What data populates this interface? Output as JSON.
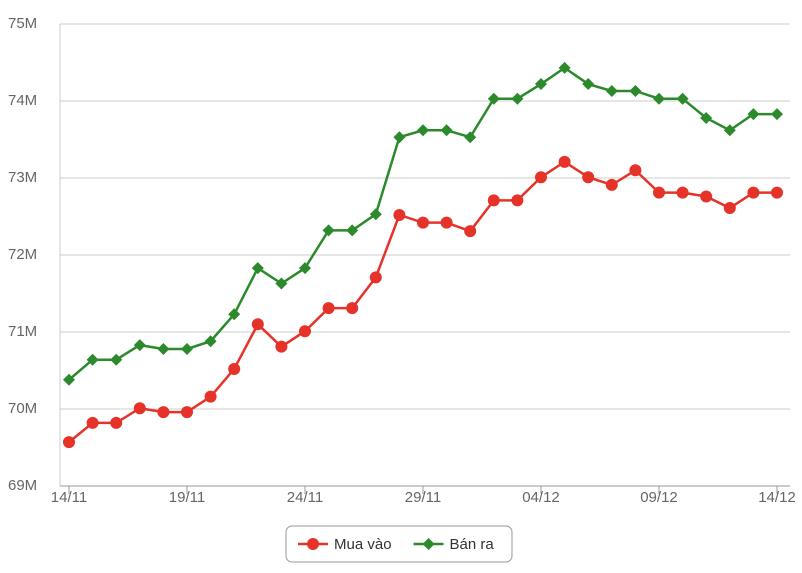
{
  "chart_data": {
    "type": "line",
    "categories": [
      "14/11",
      null,
      null,
      null,
      null,
      "19/11",
      null,
      null,
      null,
      null,
      "24/11",
      null,
      null,
      null,
      null,
      "29/11",
      null,
      null,
      null,
      null,
      "04/12",
      null,
      null,
      null,
      null,
      "09/12",
      null,
      null,
      null,
      null,
      "14/12"
    ],
    "series": [
      {
        "name": "Mua vào",
        "color": "#e53329",
        "marker": "circle",
        "values": [
          69570000,
          69820000,
          69820000,
          70010000,
          69960000,
          69960000,
          70160000,
          70520000,
          71100000,
          70810000,
          71010000,
          71310000,
          71310000,
          71710000,
          72520000,
          72420000,
          72420000,
          72310000,
          72710000,
          72710000,
          73010000,
          73210000,
          73010000,
          72910000,
          73100000,
          72810000,
          72810000,
          72760000,
          72610000,
          72810000,
          72810000
        ]
      },
      {
        "name": "Bán ra",
        "color": "#2c8a2c",
        "marker": "diamond",
        "values": [
          70380000,
          70640000,
          70640000,
          70830000,
          70780000,
          70780000,
          70880000,
          71230000,
          71830000,
          71630000,
          71830000,
          72320000,
          72320000,
          72530000,
          73530000,
          73620000,
          73620000,
          73530000,
          74030000,
          74030000,
          74220000,
          74430000,
          74220000,
          74130000,
          74130000,
          74030000,
          74030000,
          73780000,
          73620000,
          73830000,
          73830000
        ]
      }
    ],
    "ylim": [
      69000000,
      75000000
    ],
    "yticks": [
      {
        "value": 69000000,
        "label": "69M"
      },
      {
        "value": 70000000,
        "label": "70M"
      },
      {
        "value": 71000000,
        "label": "71M"
      },
      {
        "value": 72000000,
        "label": "72M"
      },
      {
        "value": 73000000,
        "label": "73M"
      },
      {
        "value": 74000000,
        "label": "74M"
      },
      {
        "value": 75000000,
        "label": "75M"
      }
    ],
    "grid": true
  }
}
